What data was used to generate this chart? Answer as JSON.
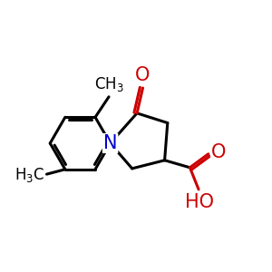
{
  "bg_color": "#ffffff",
  "bond_color": "#000000",
  "N_color": "#0000cc",
  "O_color": "#cc0000",
  "bond_width": 2.2,
  "font_size_atom": 14,
  "font_size_methyl": 12,
  "xlim": [
    0.0,
    5.5
  ],
  "ylim": [
    0.3,
    4.2
  ]
}
